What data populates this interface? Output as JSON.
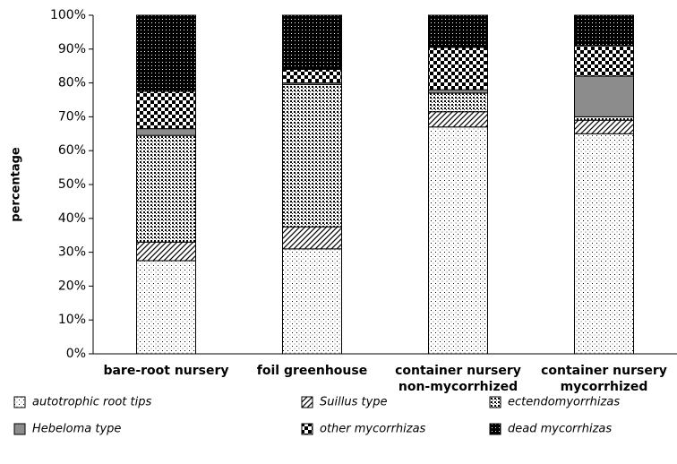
{
  "chart_data": {
    "type": "stacked-bar",
    "y_label": "percentage",
    "categories": [
      [
        "bare-root nursery"
      ],
      [
        "foil greenhouse"
      ],
      [
        "container nursery",
        "non-mycorrhized"
      ],
      [
        "container nursery",
        "mycorrhized"
      ]
    ],
    "series": [
      {
        "name": "autotrophic root tips",
        "color": "#000000",
        "pattern": "sparse-dots",
        "values": [
          27.5,
          31,
          67,
          65
        ]
      },
      {
        "name": "Suillus type",
        "color": "#000000",
        "pattern": "hatch",
        "values": [
          5.5,
          6.5,
          4.5,
          4
        ]
      },
      {
        "name": "ectendomyorrhizas",
        "color": "#000000",
        "pattern": "fine-check",
        "values": [
          31.5,
          42,
          5.5,
          1
        ]
      },
      {
        "name": "Hebeloma type",
        "color": "#8c8c8c",
        "pattern": "solid",
        "values": [
          2,
          0.5,
          1,
          12
        ]
      },
      {
        "name": "other mycorrhizas",
        "color": "#000000",
        "pattern": "checker",
        "values": [
          11,
          4,
          12.5,
          9
        ]
      },
      {
        "name": "dead mycorrhizas",
        "color": "#000000",
        "pattern": "dense",
        "values": [
          22.5,
          16,
          9.5,
          9
        ]
      }
    ],
    "ylim": [
      0,
      100
    ],
    "yticks": [
      {
        "value": 0,
        "label": "0%"
      },
      {
        "value": 10,
        "label": "10%"
      },
      {
        "value": 20,
        "label": "20%"
      },
      {
        "value": 30,
        "label": "30%"
      },
      {
        "value": 40,
        "label": "40%"
      },
      {
        "value": 50,
        "label": "50%"
      },
      {
        "value": 60,
        "label": "60%"
      },
      {
        "value": 70,
        "label": "70%"
      },
      {
        "value": 80,
        "label": "80%"
      },
      {
        "value": 90,
        "label": "90%"
      },
      {
        "value": 100,
        "label": "100%"
      }
    ]
  }
}
